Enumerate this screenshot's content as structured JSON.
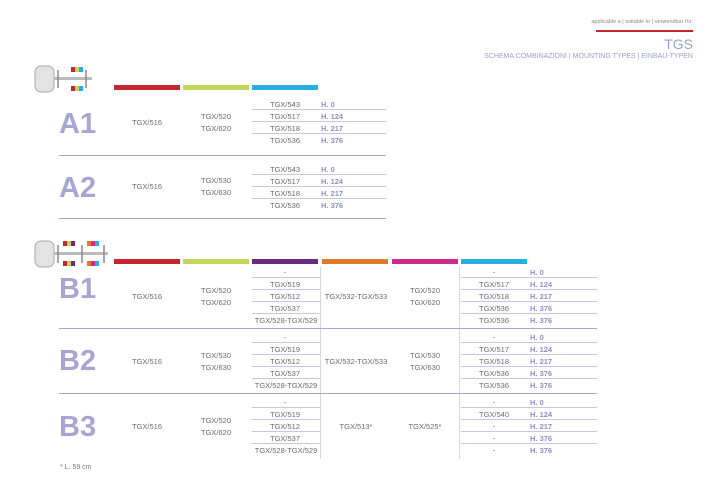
{
  "header": {
    "applicable": "applicable a | suitable to | verwendbar für:",
    "title": "TGS",
    "subtitle": "SCHEMA COMBINAZIONI | MOUNTING TYPES | EINBAU-TYPEN",
    "accent_color": "#c5252c"
  },
  "colors": {
    "red": "#c5252c",
    "lime": "#c2d75a",
    "cyan": "#27afe3",
    "purple": "#6a2a7e",
    "orange": "#e07a2a",
    "magenta": "#cc2c8c",
    "label": "#a9a5d3",
    "height_text": "#8f8ec8"
  },
  "icons": {
    "truck_a": "truck-2-axle-icon",
    "truck_b": "truck-3-axle-icon"
  },
  "groups": {
    "a1": {
      "label": "A1",
      "col1": "TGX/516",
      "col2": [
        "TGX/520",
        "TGX/620"
      ],
      "col3": [
        "TGX/543",
        "TGX/517",
        "TGX/518",
        "TGX/536"
      ],
      "heights": [
        "H. 0",
        "H. 124",
        "H. 217",
        "H. 376"
      ]
    },
    "a2": {
      "label": "A2",
      "col1": "TGX/516",
      "col2": [
        "TGX/530",
        "TGX/630"
      ],
      "col3": [
        "TGX/543",
        "TGX/517",
        "TGX/518",
        "TGX/536"
      ],
      "heights": [
        "H. 0",
        "H. 124",
        "H. 217",
        "H. 376"
      ]
    },
    "b1": {
      "label": "B1",
      "col1": "TGX/516",
      "col2": [
        "TGX/520",
        "TGX/620"
      ],
      "col3": [
        "-",
        "TGX/519",
        "TGX/512",
        "TGX/537",
        "TGX/528-TGX/529"
      ],
      "col4": "TGX/532-TGX/533",
      "col5": [
        "TGX/520",
        "TGX/620"
      ],
      "col6": [
        "-",
        "TGX/517",
        "TGX/518",
        "TGX/536",
        "TGX/536"
      ],
      "heights": [
        "H. 0",
        "H. 124",
        "H. 217",
        "H. 376",
        "H. 376"
      ]
    },
    "b2": {
      "label": "B2",
      "col1": "TGX/516",
      "col2": [
        "TGX/530",
        "TGX/630"
      ],
      "col3": [
        "-",
        "TGX/519",
        "TGX/512",
        "TGX/537",
        "TGX/528-TGX/529"
      ],
      "col4": "TGX/532-TGX/533",
      "col5": [
        "TGX/530",
        "TGX/630"
      ],
      "col6": [
        "-",
        "TGX/517",
        "TGX/518",
        "TGX/536",
        "TGX/536"
      ],
      "heights": [
        "H. 0",
        "H. 124",
        "H. 217",
        "H. 376",
        "H. 376"
      ]
    },
    "b3": {
      "label": "B3",
      "col1": "TGX/516",
      "col2": [
        "TGX/520",
        "TGX/620"
      ],
      "col3": [
        "-",
        "TGX/519",
        "TGX/512",
        "TGX/537",
        "TGX/528-TGX/529"
      ],
      "col4": "TGX/513*",
      "col5": [
        "TGX/525*"
      ],
      "col6": [
        "-",
        "TGX/540",
        "-",
        "-",
        "-"
      ],
      "heights": [
        "H. 0",
        "H. 124",
        "H. 217",
        "H. 376",
        "H. 376"
      ]
    }
  },
  "footnote": "* L. 59 cm"
}
